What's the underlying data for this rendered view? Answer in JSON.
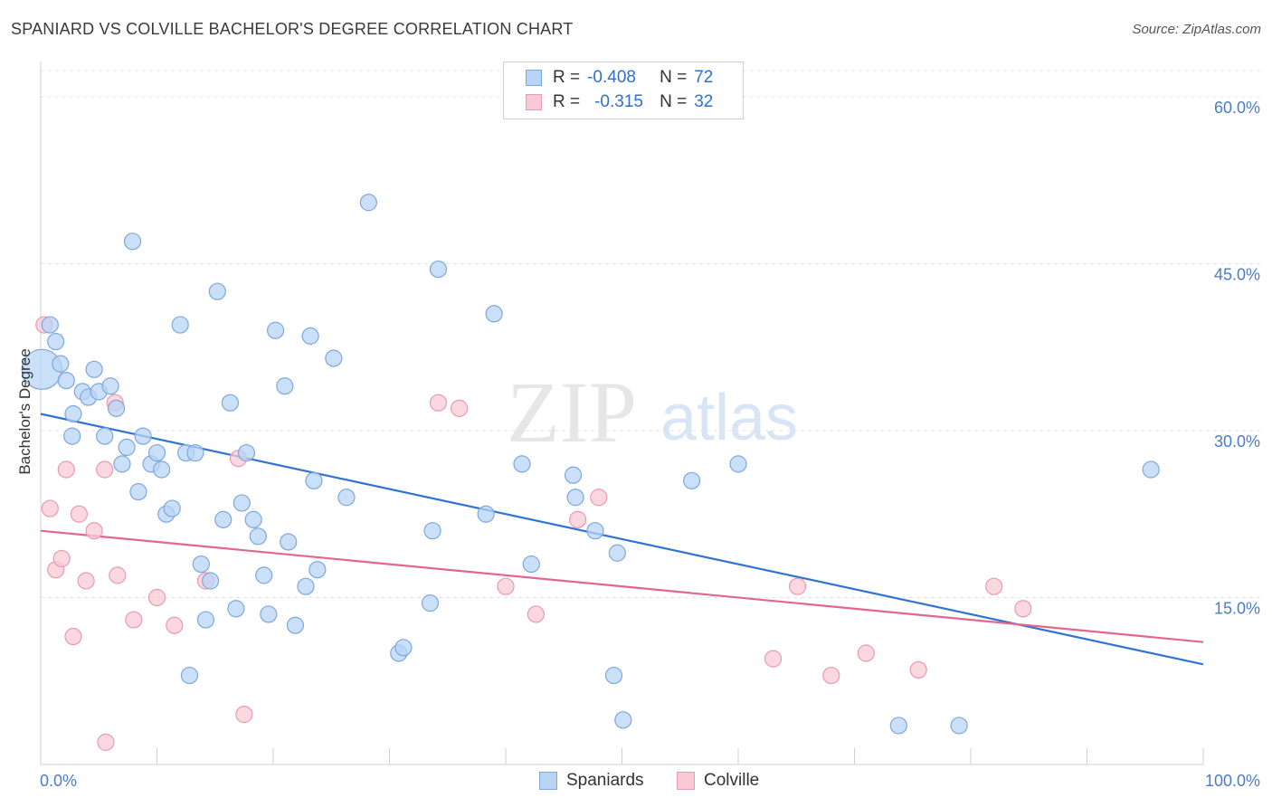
{
  "title": "SPANIARD VS COLVILLE BACHELOR'S DEGREE CORRELATION CHART",
  "source": "Source: ZipAtlas.com",
  "watermark": {
    "part1": "ZIP",
    "part2": "atlas"
  },
  "legend": {
    "rows": [
      {
        "r_label": "R =",
        "r_value": "-0.408",
        "n_label": "N =",
        "n_value": "72",
        "color": "#b8d4f5"
      },
      {
        "r_label": "R =",
        "r_value": "-0.315",
        "n_label": "N =",
        "n_value": "32",
        "color": "#f9c9d6"
      }
    ]
  },
  "bottom_legend": {
    "spaniards": "Spaniards",
    "colville": "Colville"
  },
  "chart_data": {
    "type": "scatter",
    "title": "SPANIARD VS COLVILLE BACHELOR'S DEGREE CORRELATION CHART",
    "ylabel": "Bachelor's Degree",
    "xlabel": "",
    "xlim": [
      0,
      100
    ],
    "ylim": [
      0,
      63
    ],
    "x_tick_labels": {
      "min": "0.0%",
      "max": "100.0%"
    },
    "y_ticks": [
      {
        "value": 15,
        "label": "15.0%"
      },
      {
        "value": 30,
        "label": "30.0%"
      },
      {
        "value": 45,
        "label": "45.0%"
      },
      {
        "value": 60,
        "label": "60.0%"
      }
    ],
    "grid": true,
    "series": [
      {
        "name": "Spaniards",
        "color": "#7ea7dc",
        "fill": "#b8d4f5",
        "line_color": "#2f74d0",
        "trend": {
          "x": [
            0,
            100
          ],
          "y": [
            31.5,
            9.0
          ]
        },
        "points": [
          [
            0.1,
            35.5,
            "large"
          ],
          [
            0.8,
            39.5
          ],
          [
            1.3,
            38.0
          ],
          [
            1.7,
            36.0
          ],
          [
            2.2,
            34.5
          ],
          [
            2.8,
            31.5
          ],
          [
            2.7,
            29.5
          ],
          [
            3.6,
            33.5
          ],
          [
            4.1,
            33.0
          ],
          [
            4.6,
            35.5
          ],
          [
            5.0,
            33.5
          ],
          [
            5.5,
            29.5
          ],
          [
            6.0,
            34.0
          ],
          [
            6.5,
            32.0
          ],
          [
            7.0,
            27.0
          ],
          [
            7.4,
            28.5
          ],
          [
            7.9,
            47.0
          ],
          [
            8.4,
            24.5
          ],
          [
            8.8,
            29.5
          ],
          [
            9.5,
            27.0
          ],
          [
            10.0,
            28.0
          ],
          [
            10.4,
            26.5
          ],
          [
            10.8,
            22.5
          ],
          [
            11.3,
            23.0
          ],
          [
            12.0,
            39.5
          ],
          [
            12.5,
            28.0
          ],
          [
            12.8,
            8.0
          ],
          [
            13.3,
            28.0
          ],
          [
            13.8,
            18.0
          ],
          [
            14.2,
            13.0
          ],
          [
            14.6,
            16.5
          ],
          [
            15.2,
            42.5
          ],
          [
            15.7,
            22.0
          ],
          [
            16.3,
            32.5
          ],
          [
            16.8,
            14.0
          ],
          [
            17.3,
            23.5
          ],
          [
            17.7,
            28.0
          ],
          [
            18.3,
            22.0
          ],
          [
            18.7,
            20.5
          ],
          [
            19.2,
            17.0
          ],
          [
            19.6,
            13.5
          ],
          [
            20.2,
            39.0
          ],
          [
            21.0,
            34.0
          ],
          [
            21.3,
            20.0
          ],
          [
            21.9,
            12.5
          ],
          [
            22.8,
            16.0
          ],
          [
            23.2,
            38.5
          ],
          [
            23.5,
            25.5
          ],
          [
            23.8,
            17.5
          ],
          [
            25.2,
            36.5
          ],
          [
            26.3,
            24.0
          ],
          [
            28.2,
            50.5
          ],
          [
            30.8,
            10.0
          ],
          [
            31.2,
            10.5
          ],
          [
            33.5,
            14.5
          ],
          [
            33.7,
            21.0
          ],
          [
            34.2,
            44.5
          ],
          [
            38.3,
            22.5
          ],
          [
            39.0,
            40.5
          ],
          [
            41.4,
            27.0
          ],
          [
            42.2,
            18.0
          ],
          [
            45.8,
            26.0
          ],
          [
            46.0,
            24.0
          ],
          [
            47.7,
            21.0
          ],
          [
            49.6,
            19.0
          ],
          [
            49.3,
            8.0
          ],
          [
            50.1,
            4.0
          ],
          [
            56.0,
            25.5
          ],
          [
            60.0,
            27.0
          ],
          [
            73.8,
            3.5
          ],
          [
            79.0,
            3.5
          ],
          [
            95.5,
            26.5
          ]
        ]
      },
      {
        "name": "Colville",
        "color": "#e89ab1",
        "fill": "#f9c9d6",
        "line_color": "#e2668e",
        "trend": {
          "x": [
            0,
            100
          ],
          "y": [
            21.0,
            11.0
          ]
        },
        "points": [
          [
            0.3,
            39.5
          ],
          [
            0.8,
            23.0
          ],
          [
            1.3,
            17.5
          ],
          [
            1.8,
            18.5
          ],
          [
            2.2,
            26.5
          ],
          [
            2.8,
            11.5
          ],
          [
            3.3,
            22.5
          ],
          [
            3.9,
            16.5
          ],
          [
            4.6,
            21.0
          ],
          [
            5.5,
            26.5
          ],
          [
            5.6,
            2.0
          ],
          [
            6.4,
            32.5
          ],
          [
            6.6,
            17.0
          ],
          [
            8.0,
            13.0
          ],
          [
            10.0,
            15.0
          ],
          [
            11.5,
            12.5
          ],
          [
            14.2,
            16.5
          ],
          [
            17.0,
            27.5
          ],
          [
            17.5,
            4.5
          ],
          [
            34.2,
            32.5
          ],
          [
            36.0,
            32.0
          ],
          [
            40.0,
            16.0
          ],
          [
            42.6,
            13.5
          ],
          [
            46.2,
            22.0
          ],
          [
            48.0,
            24.0
          ],
          [
            63.0,
            9.5
          ],
          [
            65.1,
            16.0
          ],
          [
            68.0,
            8.0
          ],
          [
            71.0,
            10.0
          ],
          [
            75.5,
            8.5
          ],
          [
            82.0,
            16.0
          ],
          [
            84.5,
            14.0
          ]
        ]
      }
    ]
  }
}
